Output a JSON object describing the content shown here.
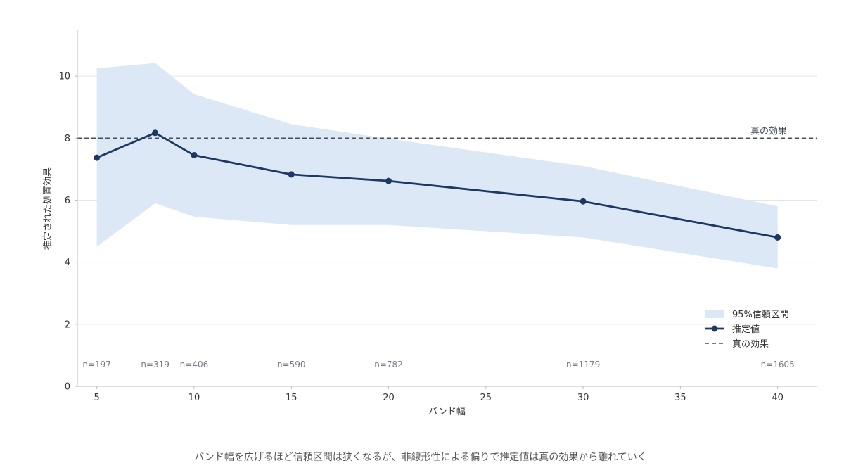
{
  "chart_data": {
    "type": "line",
    "xlabel": "バンド幅",
    "ylabel": "推定された処置効果",
    "xlim": [
      4,
      42
    ],
    "ylim": [
      0,
      11.5
    ],
    "x_ticks": [
      5,
      10,
      15,
      20,
      25,
      30,
      35,
      40
    ],
    "y_ticks": [
      0,
      2,
      4,
      6,
      8,
      10
    ],
    "grid": "horizontal",
    "legend_position": "lower-right",
    "x": [
      5,
      8,
      10,
      15,
      20,
      30,
      40
    ],
    "estimate": {
      "name": "推定値",
      "values": [
        7.37,
        8.17,
        7.45,
        6.83,
        6.62,
        5.96,
        4.8
      ],
      "color": "#1f3764"
    },
    "ci": {
      "name": "95%信頼区間",
      "lower": [
        4.5,
        5.9,
        5.47,
        5.2,
        5.2,
        4.8,
        3.8
      ],
      "upper": [
        10.25,
        10.42,
        9.42,
        8.45,
        7.98,
        7.1,
        5.8
      ],
      "color": "#dce8f5"
    },
    "true_effect": {
      "name": "真の効果",
      "value": 8.0,
      "label": "真の効果",
      "color": "#4a4f5c"
    },
    "sample_sizes": [
      {
        "x": 5,
        "label": "n=197"
      },
      {
        "x": 8,
        "label": "n=319"
      },
      {
        "x": 10,
        "label": "n=406"
      },
      {
        "x": 15,
        "label": "n=590"
      },
      {
        "x": 20,
        "label": "n=782"
      },
      {
        "x": 30,
        "label": "n=1179"
      },
      {
        "x": 40,
        "label": "n=1605"
      }
    ],
    "n_label_y": 0.7,
    "caption": "バンド幅を広げるほど信頼区間は狭くなるが、非線形性による偏りで推定値は真の効果から離れていく"
  }
}
